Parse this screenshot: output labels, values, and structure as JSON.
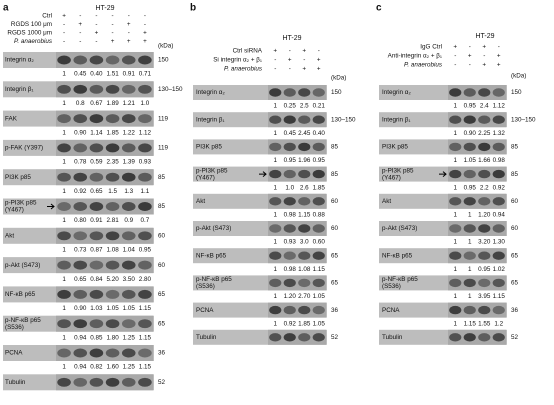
{
  "panels": [
    {
      "label": "a",
      "title": "HT-29",
      "kda_header": "(kDa)",
      "conditions": [
        {
          "name": "Ctrl",
          "signs": [
            "+",
            "-",
            "-",
            "-",
            "-",
            "-"
          ]
        },
        {
          "name": "RGDS 100 μm",
          "signs": [
            "-",
            "+",
            "-",
            "-",
            "+",
            "-"
          ]
        },
        {
          "name": "RGDS 1000 μm",
          "signs": [
            "-",
            "-",
            "+",
            "-",
            "-",
            "+"
          ]
        },
        {
          "name": "P. anaerobius",
          "signs": [
            "-",
            "-",
            "-",
            "+",
            "+",
            "+"
          ]
        }
      ],
      "blots": [
        {
          "label": [
            "Integrin α₂"
          ],
          "values": [
            "1",
            "0.45",
            "0.40",
            "1.51",
            "0.91",
            "0.71"
          ],
          "kda": "150"
        },
        {
          "label": [
            "Integrin β₁"
          ],
          "values": [
            "1",
            "0.8",
            "0.67",
            "1.89",
            "1.21",
            "1.0"
          ],
          "kda": "130–150"
        },
        {
          "label": [
            "FAK"
          ],
          "values": [
            "1",
            "0.90",
            "1.14",
            "1.85",
            "1.22",
            "1.12"
          ],
          "kda": "119"
        },
        {
          "label": [
            "p-FAK (Y397)"
          ],
          "values": [
            "1",
            "0.78",
            "0.59",
            "2.35",
            "1.39",
            "0.93"
          ],
          "kda": "119"
        },
        {
          "label": [
            "PI3K p85"
          ],
          "values": [
            "1",
            "0.92",
            "0.65",
            "1.5",
            "1.3",
            "1.1"
          ],
          "kda": "85"
        },
        {
          "label": [
            "p-PI3K p85",
            "(Y467)"
          ],
          "values": [
            "1",
            "0.80",
            "0.91",
            "2.81",
            "0.9",
            "0.7"
          ],
          "kda": "85"
        },
        {
          "label": [
            "Akt"
          ],
          "values": [
            "1",
            "0.73",
            "0.87",
            "1.08",
            "1.04",
            "0.95"
          ],
          "kda": "60"
        },
        {
          "label": [
            "p-Akt (S473)"
          ],
          "values": [
            "1",
            "0.65",
            "0.84",
            "5.20",
            "3.50",
            "2.80"
          ],
          "kda": "60"
        },
        {
          "label": [
            "NF-κB p65"
          ],
          "values": [
            "1",
            "0.90",
            "1.03",
            "1.05",
            "1.05",
            "1.15"
          ],
          "kda": "65"
        },
        {
          "label": [
            "p-NF-κB p65",
            "(S536)"
          ],
          "values": [
            "1",
            "0.94",
            "0.85",
            "1.80",
            "1.25",
            "1.15"
          ],
          "kda": "65"
        },
        {
          "label": [
            "PCNA"
          ],
          "values": [
            "1",
            "0.94",
            "0.82",
            "1.60",
            "1.25",
            "1.15"
          ],
          "kda": "36"
        },
        {
          "label": [
            "Tubulin"
          ],
          "kda": "52"
        }
      ]
    },
    {
      "label": "b",
      "title": "HT-29",
      "kda_header": "(kDa)",
      "conditions": [
        {
          "name": "Ctrl siRNA",
          "signs": [
            "+",
            "-",
            "+",
            "-"
          ]
        },
        {
          "name": "Si integrin α₂ + β₁",
          "signs": [
            "-",
            "+",
            "-",
            "+"
          ]
        },
        {
          "name": "P. anaerobius",
          "signs": [
            "-",
            "-",
            "+",
            "+"
          ]
        }
      ],
      "blots": [
        {
          "label": [
            "Integrin α₂"
          ],
          "values": [
            "1",
            "0.25",
            "2.5",
            "0.21"
          ],
          "kda": "150"
        },
        {
          "label": [
            "Integrin β₁"
          ],
          "values": [
            "1",
            "0.45",
            "2.45",
            "0.40"
          ],
          "kda": "130–150"
        },
        {
          "label": [
            "PI3K p85"
          ],
          "values": [
            "1",
            "0.95",
            "1.96",
            "0.95"
          ],
          "kda": "85"
        },
        {
          "label": [
            "p-PI3K p85",
            "(Y467)"
          ],
          "values": [
            "1",
            "1.0",
            "2.6",
            "1.85"
          ],
          "kda": "85"
        },
        {
          "label": [
            "Akt"
          ],
          "values": [
            "1",
            "0.98",
            "1.15",
            "0.88"
          ],
          "kda": "60"
        },
        {
          "label": [
            "p-Akt (S473)"
          ],
          "values": [
            "1",
            "0.93",
            "3.0",
            "0.60"
          ],
          "kda": "60"
        },
        {
          "label": [
            "NF-κB p65"
          ],
          "values": [
            "1",
            "0.98",
            "1.08",
            "1.15"
          ],
          "kda": "65"
        },
        {
          "label": [
            "p-NF-κB p65",
            "(S536)"
          ],
          "values": [
            "1",
            "1.20",
            "2.70",
            "1.05"
          ],
          "kda": "65"
        },
        {
          "label": [
            "PCNA"
          ],
          "values": [
            "1",
            "0.92",
            "1.85",
            "1.05"
          ],
          "kda": "36"
        },
        {
          "label": [
            "Tubulin"
          ],
          "kda": "52"
        }
      ]
    },
    {
      "label": "c",
      "title": "HT-29",
      "kda_header": "(kDa)",
      "conditions": [
        {
          "name": "IgG Ctrl",
          "signs": [
            "+",
            "-",
            "+",
            "-"
          ]
        },
        {
          "name": "Anti-integrin α₂ + β₁",
          "signs": [
            "-",
            "+",
            "-",
            "+"
          ]
        },
        {
          "name": "P. anaerobius",
          "signs": [
            "-",
            "-",
            "+",
            "+"
          ]
        }
      ],
      "blots": [
        {
          "label": [
            "Integrin α₂"
          ],
          "values": [
            "1",
            "0.95",
            "2.4",
            "1.12"
          ],
          "kda": "150"
        },
        {
          "label": [
            "Integrin β₁"
          ],
          "values": [
            "1",
            "0.90",
            "2.25",
            "1.32"
          ],
          "kda": "130–150"
        },
        {
          "label": [
            "PI3K p85"
          ],
          "values": [
            "1",
            "1.05",
            "1.66",
            "0.98"
          ],
          "kda": "85"
        },
        {
          "label": [
            "p-PI3K p85",
            "(Y467)"
          ],
          "values": [
            "1",
            "0.95",
            "2.2",
            "0.92"
          ],
          "kda": "85"
        },
        {
          "label": [
            "Akt"
          ],
          "values": [
            "1",
            "1",
            "1.20",
            "0.94"
          ],
          "kda": "60"
        },
        {
          "label": [
            "p-Akt (S473)"
          ],
          "values": [
            "1",
            "1",
            "3.20",
            "1.30"
          ],
          "kda": "60"
        },
        {
          "label": [
            "NF-κB p65"
          ],
          "values": [
            "1",
            "1",
            "0.95",
            "1.02"
          ],
          "kda": "65"
        },
        {
          "label": [
            "p-NF-κB p65",
            "(S536)"
          ],
          "values": [
            "1",
            "1",
            "3.95",
            "1.15"
          ],
          "kda": "65"
        },
        {
          "label": [
            "PCNA"
          ],
          "values": [
            "1",
            "1.15",
            "1.55",
            "1.2"
          ],
          "kda": "36"
        },
        {
          "label": [
            "Tubulin"
          ],
          "kda": "52"
        }
      ]
    }
  ]
}
